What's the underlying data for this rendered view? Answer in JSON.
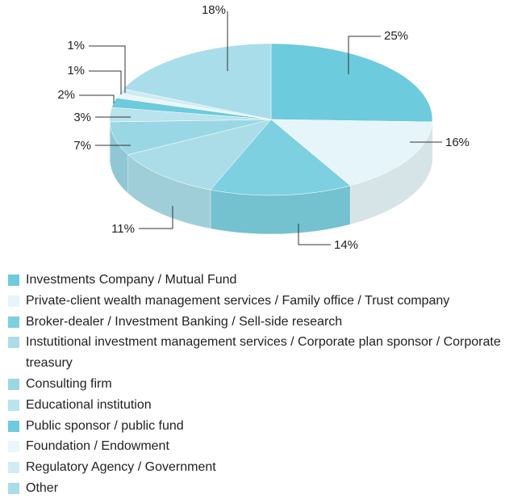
{
  "chart_data": {
    "type": "pie3d",
    "categories": [
      "Investments Company / Mutual Fund",
      "Private-client wealth management services / Family office / Trust company",
      "Broker-dealer / Investment Banking / Sell-side research",
      "Instutitional investment management services / Corporate plan sponsor / Corporate treasury",
      "Consulting firm",
      "Educational institution",
      "Public sponsor / public fund",
      "Foundation / Endowment",
      "Regulatory Agency / Government",
      "Other"
    ],
    "values": [
      25,
      16,
      14,
      11,
      7,
      3,
      2,
      1,
      1,
      18
    ],
    "value_labels": [
      "25%",
      "16%",
      "14%",
      "11%",
      "7%",
      "3%",
      "2%",
      "1%",
      "1%",
      "18%"
    ],
    "colors": [
      "#6ccbdc",
      "#e6f5f9",
      "#7dd0e0",
      "#abdde9",
      "#9ad7e4",
      "#b9e3ed",
      "#6ccbdc",
      "#e9f6fa",
      "#cfecf3",
      "#a9dde9"
    ],
    "legend": "bottom"
  }
}
